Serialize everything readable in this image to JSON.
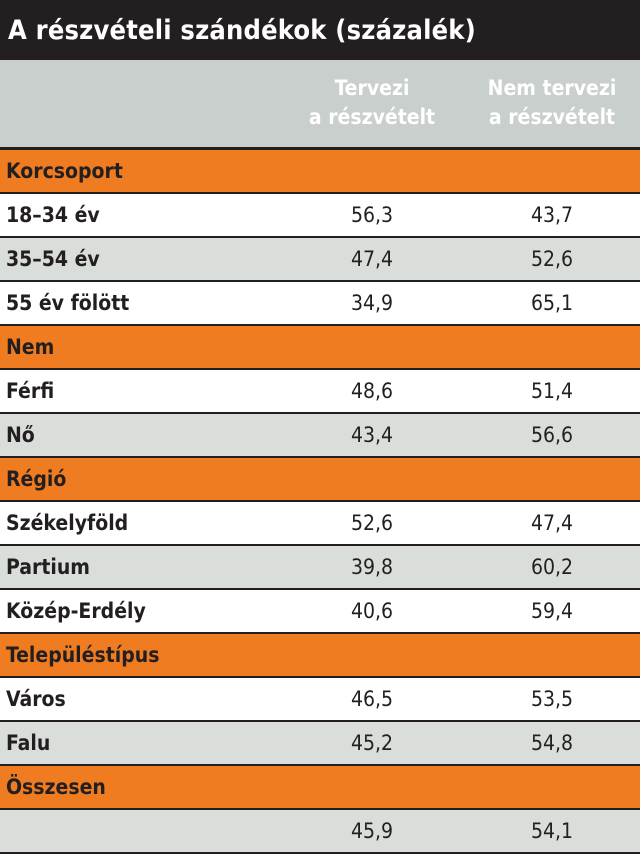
{
  "chart_data": {
    "type": "table",
    "title": "A részvételi szándékok (százalék)",
    "columns": [
      "Tervezi a részvételt",
      "Nem tervezi a részvételt"
    ],
    "header_lines": [
      [
        "Tervezi",
        "a részvételt"
      ],
      [
        "Nem tervezi",
        "a részvételt"
      ]
    ],
    "groups": [
      {
        "name": "Korcsoport",
        "rows": [
          {
            "label": "18–34 év",
            "values": [
              "56,3",
              "43,7"
            ]
          },
          {
            "label": "35–54 év",
            "values": [
              "47,4",
              "52,6"
            ]
          },
          {
            "label": "55 év fölött",
            "values": [
              "34,9",
              "65,1"
            ]
          }
        ]
      },
      {
        "name": "Nem",
        "rows": [
          {
            "label": "Férfi",
            "values": [
              "48,6",
              "51,4"
            ]
          },
          {
            "label": "Nő",
            "values": [
              "43,4",
              "56,6"
            ]
          }
        ]
      },
      {
        "name": "Régió",
        "rows": [
          {
            "label": "Székelyföld",
            "values": [
              "52,6",
              "47,4"
            ]
          },
          {
            "label": "Partium",
            "values": [
              "39,8",
              "60,2"
            ]
          },
          {
            "label": "Közép-Erdély",
            "values": [
              "40,6",
              "59,4"
            ]
          }
        ]
      },
      {
        "name": "Településtípus",
        "rows": [
          {
            "label": "Város",
            "values": [
              "46,5",
              "53,5"
            ]
          },
          {
            "label": "Falu",
            "values": [
              "45,2",
              "54,8"
            ]
          }
        ]
      },
      {
        "name": "Összesen",
        "rows": [
          {
            "label": "",
            "values": [
              "45,9",
              "54,1"
            ]
          }
        ]
      }
    ]
  },
  "colors": {
    "title_background": "#231f20",
    "header_background": "#c9cfcc",
    "section_background": "#f07c21",
    "row_alt_background": "#d9deda"
  }
}
